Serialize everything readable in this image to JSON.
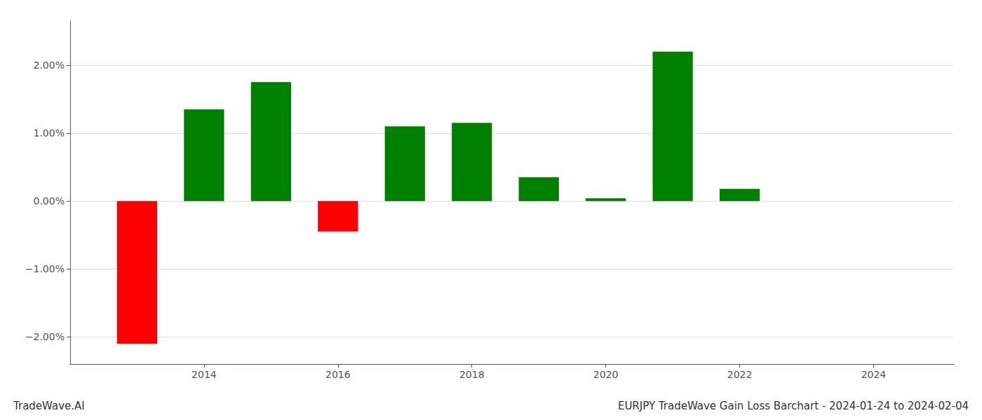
{
  "chart_data": {
    "type": "bar",
    "title": "EURJPY TradeWave Gain Loss Barchart - 2024-01-24 to 2024-02-04",
    "annotations": [
      "TradeWave.AI"
    ],
    "x": [
      2013,
      2014,
      2015,
      2016,
      2017,
      2018,
      2019,
      2020,
      2021,
      2022
    ],
    "values": [
      -2.1,
      1.35,
      1.75,
      -0.45,
      1.1,
      1.15,
      0.35,
      0.04,
      2.2,
      0.18
    ],
    "colors": [
      "red",
      "green",
      "green",
      "red",
      "green",
      "green",
      "green",
      "green",
      "green",
      "green"
    ],
    "xlim": [
      2012.0,
      2025.2
    ],
    "xticks": [
      2014,
      2016,
      2018,
      2020,
      2022,
      2024
    ],
    "ylim": [
      -2.4,
      2.65
    ],
    "yticks": [
      {
        "value": -2.0,
        "label": "−2.00%"
      },
      {
        "value": -1.0,
        "label": "−1.00%"
      },
      {
        "value": 0.0,
        "label": "0.00%"
      },
      {
        "value": 1.0,
        "label": "1.00%"
      },
      {
        "value": 2.0,
        "label": "2.00%"
      }
    ],
    "grid": true
  }
}
